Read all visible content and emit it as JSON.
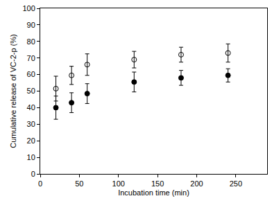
{
  "chart_data": {
    "type": "scatter",
    "x_label": "Incubation time (min)",
    "y_label": "Cumulative release of VC-2-p (%)",
    "xlim": [
      0,
      290
    ],
    "xticks": [
      0,
      50,
      100,
      150,
      200,
      250
    ],
    "ylim": [
      0,
      100
    ],
    "yticks": [
      0,
      10,
      20,
      30,
      40,
      50,
      60,
      70,
      80,
      90,
      100
    ],
    "grid": false,
    "series": [
      {
        "color": "#000000",
        "marker": "open-circle",
        "x": [
          20,
          40,
          60,
          120,
          180,
          240
        ],
        "values": [
          51.5,
          59.5,
          66,
          69,
          72,
          73
        ],
        "errors": [
          7.5,
          5.5,
          6.5,
          5,
          4.5,
          5.5
        ]
      },
      {
        "color": "#000000",
        "marker": "filled-circle",
        "x": [
          20,
          40,
          60,
          120,
          180,
          240
        ],
        "values": [
          40,
          43,
          48.5,
          55.5,
          58,
          59.5
        ],
        "errors": [
          7,
          6,
          6,
          6,
          4.5,
          4
        ]
      }
    ]
  }
}
